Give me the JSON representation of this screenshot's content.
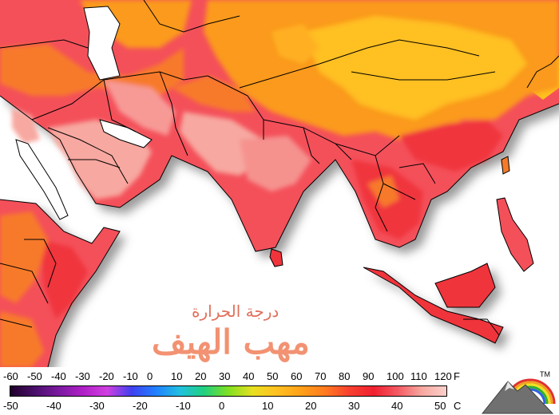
{
  "map": {
    "region": "South Asia, Middle East, East Asia, East Africa",
    "colors": {
      "ocean": "#ffffff",
      "very_hot": "#f7a8a0",
      "hot": "#f4505a",
      "hot_red": "#f0343c",
      "warm": "#f77a2a",
      "warm_orange": "#fb9a1e",
      "mild": "#ffc020",
      "land_shadow": "#8a8a8a",
      "border": "#000000"
    }
  },
  "watermark": {
    "line1": "درجة الحرارة",
    "line2": "مهب الهيف"
  },
  "legend": {
    "fahrenheit_ticks": [
      "-60",
      "-50",
      "-40",
      "-30",
      "-20",
      "-10",
      "0",
      "10",
      "20",
      "30",
      "40",
      "50",
      "60",
      "70",
      "80",
      "90",
      "100",
      "110",
      "120"
    ],
    "celsius_ticks": [
      "-50",
      "-40",
      "-30",
      "-20",
      "-10",
      "0",
      "10",
      "20",
      "30",
      "40",
      "50"
    ],
    "unit_f": "F",
    "unit_c": "C",
    "scale_colors": [
      "#20002a",
      "#4a0f6a",
      "#7a1aa0",
      "#b020c8",
      "#d040e0",
      "#4040f0",
      "#2080ff",
      "#20c0e0",
      "#20d080",
      "#80e020",
      "#e8e020",
      "#ffc020",
      "#ffa018",
      "#ff7a20",
      "#f84030",
      "#f02030",
      "#f45a64",
      "#f7a8a0",
      "#fbd0cc"
    ]
  },
  "logo": {
    "name": "mountain-logo",
    "trademark": "TM",
    "rainbow_colors": [
      "#e03030",
      "#f0a020",
      "#f0e020",
      "#30b030",
      "#3060e0"
    ]
  }
}
